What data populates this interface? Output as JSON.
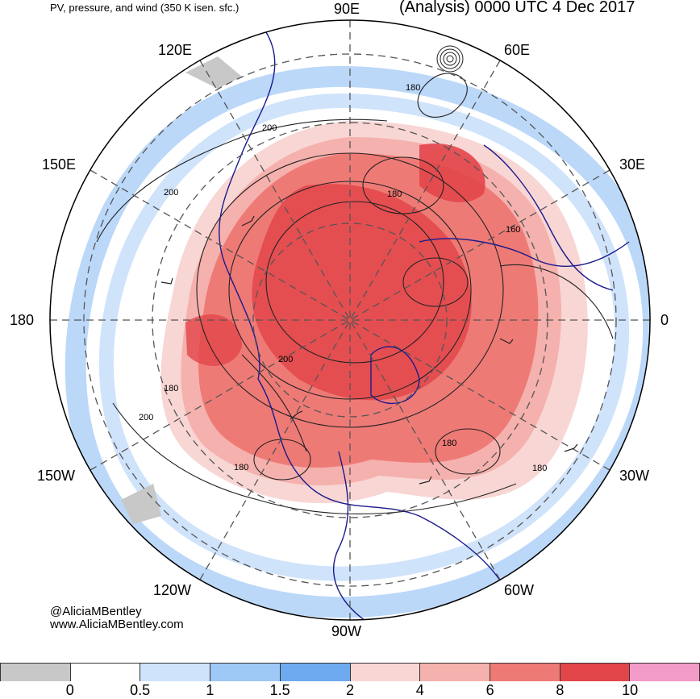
{
  "header": {
    "product_title": "PV, pressure, and wind (350 K isen. sfc.)",
    "valid_time": "(Analysis) 0000 UTC 4 Dec 2017"
  },
  "longitude_labels": [
    "90E",
    "60E",
    "30E",
    "0",
    "30W",
    "60W",
    "90W",
    "120W",
    "150W",
    "180",
    "150E",
    "120E"
  ],
  "contour_labels": [
    "200",
    "180",
    "200",
    "180",
    "160",
    "200",
    "180",
    "200",
    "180",
    "180",
    "180"
  ],
  "credit": {
    "handle": "@AliciaMBentley",
    "website": "www.AliciaMBentley.com"
  },
  "colorbar": {
    "colors": [
      "#c8c8c8",
      "#ffffff",
      "#cfe3fb",
      "#9ec8f6",
      "#6eaaf0",
      "#f8d6d4",
      "#f5b1ad",
      "#ee7a76",
      "#e2464a",
      "#f29bc8"
    ],
    "tick_labels": [
      "0",
      "0.5",
      "1",
      "1.5",
      "2",
      "4",
      "6",
      "8",
      "10"
    ]
  },
  "chart_data": {
    "type": "map",
    "projection": "north polar stereographic",
    "field": "potential vorticity (PVU) on the 350 K isentropic surface",
    "contours": "pressure (hPa)",
    "barbs": "wind",
    "pv_levels": [
      0,
      0.5,
      1,
      1.5,
      2,
      4,
      6,
      8,
      10
    ],
    "grid": true
  }
}
